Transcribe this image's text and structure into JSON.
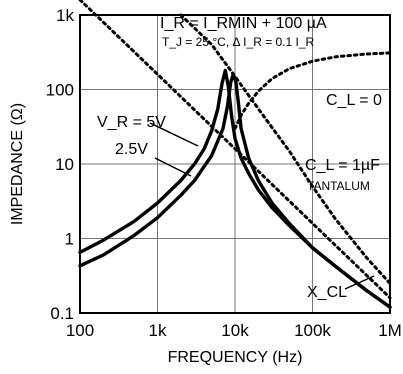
{
  "chart_data": {
    "type": "line",
    "xlabel": "FREQUENCY (Hz)",
    "ylabel": "IMPEDANCE (Ω)",
    "xscale": "log",
    "yscale": "log",
    "xlim": [
      100,
      1000000
    ],
    "ylim": [
      0.1,
      1000
    ],
    "grid": true,
    "x_ticks": [
      "100",
      "1k",
      "10k",
      "100k",
      "1M"
    ],
    "y_ticks": [
      "0.1",
      "1",
      "10",
      "100",
      "1k"
    ],
    "annotations": {
      "condition_line1": "I_R = I_RMIN + 100 µA",
      "condition_line2": "T_J = 25 °C, Δ I_R = 0.1 I_R",
      "vr5": "V_R = 5V",
      "vr25": "2.5V",
      "cl0": "C_L = 0",
      "cl1": "C_L = 1µF",
      "tantalum": "TANTALUM",
      "xcl": "X_CL"
    },
    "series": [
      {
        "name": "V_R = 5V",
        "style": "solid",
        "x": [
          100,
          200,
          500,
          1000,
          2000,
          3000,
          4000,
          5000,
          6000,
          6800,
          7500,
          8200,
          9000,
          10000,
          12000,
          15000,
          20000,
          30000,
          50000,
          100000,
          200000,
          500000,
          1000000
        ],
        "y": [
          0.65,
          0.95,
          1.7,
          3.0,
          6.0,
          10,
          16,
          28,
          55,
          120,
          180,
          110,
          45,
          22,
          12,
          7.5,
          4.5,
          2.6,
          1.5,
          0.75,
          0.42,
          0.2,
          0.12
        ]
      },
      {
        "name": "2.5V",
        "style": "solid",
        "x": [
          100,
          200,
          500,
          1000,
          2000,
          3000,
          5000,
          7000,
          8000,
          8800,
          9500,
          10200,
          11000,
          12000,
          15000,
          20000,
          30000,
          50000,
          100000,
          200000,
          500000,
          1000000
        ],
        "y": [
          0.43,
          0.6,
          1.1,
          1.9,
          3.8,
          6.0,
          13,
          30,
          60,
          125,
          160,
          130,
          70,
          30,
          12,
          6.0,
          3.0,
          1.6,
          0.75,
          0.42,
          0.2,
          0.12
        ]
      },
      {
        "name": "C_L = 0",
        "style": "dotted",
        "x": [
          10000,
          12000,
          15000,
          20000,
          30000,
          50000,
          100000,
          200000,
          500000,
          1000000
        ],
        "y": [
          30,
          45,
          65,
          95,
          140,
          190,
          240,
          275,
          300,
          310
        ]
      },
      {
        "name": "X_CL",
        "style": "dotted",
        "x": [
          100,
          1000000
        ],
        "y": [
          1600,
          0.16
        ]
      },
      {
        "name": "",
        "style": "dotted",
        "x": [
          2000,
          5000,
          10000,
          20000,
          50000,
          100000,
          200000,
          500000,
          1000000
        ],
        "y": [
          1000,
          400,
          150,
          55,
          15,
          5,
          1.8,
          0.55,
          0.25
        ]
      }
    ]
  }
}
